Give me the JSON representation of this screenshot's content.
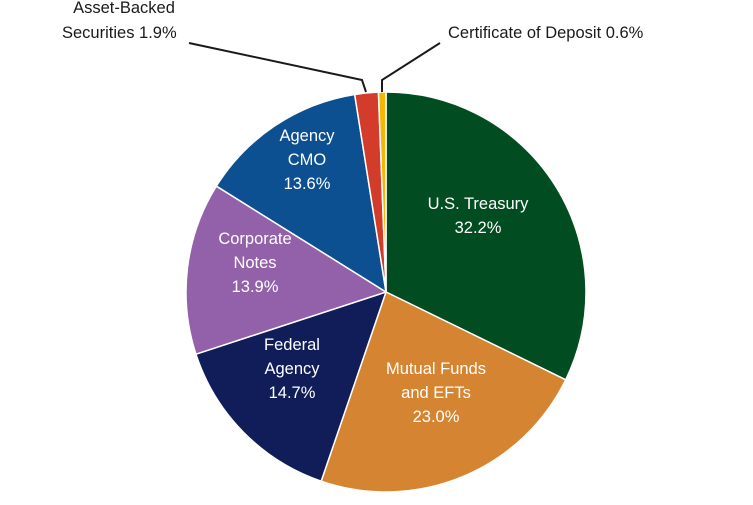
{
  "chart_data": {
    "type": "pie",
    "title": "",
    "start_angle_deg": 0,
    "direction": "clockwise",
    "slices": [
      {
        "label": "U.S. Treasury",
        "value": 32.2,
        "value_label": "32.2%",
        "label_lines": [
          "U.S. Treasury",
          "32.2%"
        ],
        "color": "#014d21",
        "label_color": "#ffffff",
        "label_placement": "inside"
      },
      {
        "label": "Mutual Funds and EFTs",
        "value": 23.0,
        "value_label": "23.0%",
        "label_lines": [
          "Mutual Funds",
          "and EFTs",
          "23.0%"
        ],
        "color": "#d58532",
        "label_color": "#ffffff",
        "label_placement": "inside"
      },
      {
        "label": "Federal Agency",
        "value": 14.7,
        "value_label": "14.7%",
        "label_lines": [
          "Federal",
          "Agency",
          "14.7%"
        ],
        "color": "#101d59",
        "label_color": "#ffffff",
        "label_placement": "inside"
      },
      {
        "label": "Corporate Notes",
        "value": 13.9,
        "value_label": "13.9%",
        "label_lines": [
          "Corporate",
          "Notes",
          "13.9%"
        ],
        "color": "#9361aa",
        "label_color": "#ffffff",
        "label_placement": "inside"
      },
      {
        "label": "Agency CMO",
        "value": 13.6,
        "value_label": "13.6%",
        "label_lines": [
          "Agency",
          "CMO",
          "13.6%"
        ],
        "color": "#0c5092",
        "label_color": "#ffffff",
        "label_placement": "inside"
      },
      {
        "label": "Asset-Backed Securities",
        "value": 1.9,
        "value_label": "1.9%",
        "label_lines": [
          "Asset-Backed",
          "Securities 1.9%"
        ],
        "color": "#d33b2b",
        "label_color": "#1a1a1a",
        "label_placement": "outside-left"
      },
      {
        "label": "Certificate of Deposit",
        "value": 0.6,
        "value_label": "0.6%",
        "label_lines": [
          "Certificate of Deposit 0.6%"
        ],
        "color": "#f2b705",
        "label_color": "#1a1a1a",
        "label_placement": "outside-right"
      }
    ]
  }
}
